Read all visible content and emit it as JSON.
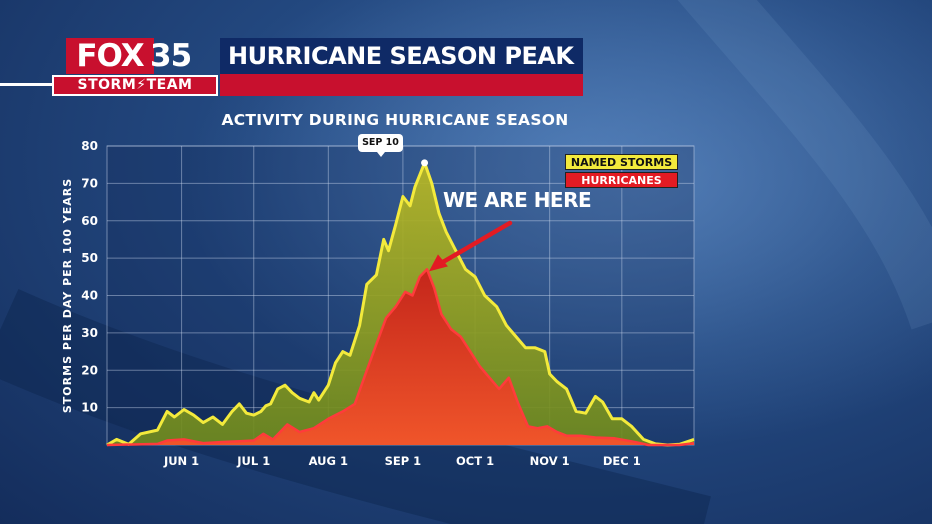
{
  "header": {
    "logo_fox": "FOX",
    "logo_number": "35",
    "logo_team": "STORM⚡TEAM",
    "title": "HURRICANE SEASON PEAK"
  },
  "colors": {
    "named_storms": "#f3ea3c",
    "hurricanes": "#e31b23",
    "brand_red": "#c8102e",
    "title_blue": "#0f2a66"
  },
  "chart_data": {
    "type": "area",
    "title": "ACTIVITY DURING HURRICANE SEASON",
    "ylabel": "STORMS PER DAY PER 100 YEARS",
    "xlabel": "",
    "ylim": [
      0,
      80
    ],
    "yticks": [
      10,
      20,
      30,
      40,
      50,
      60,
      70,
      80
    ],
    "xticks": [
      "JUN 1",
      "JUL 1",
      "AUG 1",
      "SEP 1",
      "OCT 1",
      "NOV 1",
      "DEC 1"
    ],
    "grid": true,
    "legend_position": "top-right",
    "series": [
      {
        "name": "NAMED STORMS",
        "color": "#f3ea3c",
        "points": [
          [
            "May 1",
            0
          ],
          [
            "May 5",
            1.5
          ],
          [
            "May 10",
            0.2
          ],
          [
            "May 15",
            3
          ],
          [
            "May 22",
            4
          ],
          [
            "May 26",
            9
          ],
          [
            "May 29",
            7.5
          ],
          [
            "Jun 2",
            9.5
          ],
          [
            "Jun 6",
            8
          ],
          [
            "Jun 10",
            6
          ],
          [
            "Jun 14",
            7.5
          ],
          [
            "Jun 18",
            5.5
          ],
          [
            "Jun 22",
            9
          ],
          [
            "Jun 25",
            11
          ],
          [
            "Jun 28",
            8.5
          ],
          [
            "Jul 1",
            8
          ],
          [
            "Jul 4",
            9
          ],
          [
            "Jul 6",
            10.5
          ],
          [
            "Jul 8",
            11
          ],
          [
            "Jul 11",
            15
          ],
          [
            "Jul 14",
            16
          ],
          [
            "Jul 17",
            14
          ],
          [
            "Jul 20",
            12.5
          ],
          [
            "Jul 24",
            11.5
          ],
          [
            "Jul 26",
            14
          ],
          [
            "Jul 28",
            12
          ],
          [
            "Aug 1",
            16
          ],
          [
            "Aug 4",
            22
          ],
          [
            "Aug 7",
            25
          ],
          [
            "Aug 10",
            24
          ],
          [
            "Aug 14",
            32
          ],
          [
            "Aug 17",
            43
          ],
          [
            "Aug 21",
            45.5
          ],
          [
            "Aug 24",
            55
          ],
          [
            "Aug 26",
            52
          ],
          [
            "Aug 29",
            59
          ],
          [
            "Sep 1",
            66.5
          ],
          [
            "Sep 4",
            64
          ],
          [
            "Sep 6",
            69
          ],
          [
            "Sep 10",
            75.5
          ],
          [
            "Sep 13",
            70
          ],
          [
            "Sep 16",
            62
          ],
          [
            "Sep 19",
            57
          ],
          [
            "Sep 23",
            52
          ],
          [
            "Sep 27",
            47
          ],
          [
            "Oct 1",
            45
          ],
          [
            "Oct 5",
            40
          ],
          [
            "Oct 10",
            37
          ],
          [
            "Oct 14",
            32
          ],
          [
            "Oct 18",
            29
          ],
          [
            "Oct 22",
            26
          ],
          [
            "Oct 26",
            26
          ],
          [
            "Oct 30",
            25
          ],
          [
            "Nov 1",
            19
          ],
          [
            "Nov 4",
            17
          ],
          [
            "Nov 8",
            15
          ],
          [
            "Nov 12",
            9
          ],
          [
            "Nov 16",
            8.5
          ],
          [
            "Nov 20",
            13
          ],
          [
            "Nov 23",
            11.5
          ],
          [
            "Nov 27",
            7
          ],
          [
            "Dec 1",
            7
          ],
          [
            "Dec 5",
            5
          ],
          [
            "Dec 10",
            1.5
          ],
          [
            "Dec 15",
            0.3
          ],
          [
            "Dec 20",
            0
          ],
          [
            "Dec 25",
            0.2
          ],
          [
            "Dec 31",
            1.5
          ]
        ]
      },
      {
        "name": "HURRICANES",
        "color": "#e31b23",
        "points": [
          [
            "May 1",
            0
          ],
          [
            "May 22",
            0.3
          ],
          [
            "May 26",
            1.2
          ],
          [
            "Jun 2",
            1.5
          ],
          [
            "Jun 10",
            0.5
          ],
          [
            "Jun 18",
            0.8
          ],
          [
            "Jun 25",
            1
          ],
          [
            "Jul 1",
            1.2
          ],
          [
            "Jul 5",
            3
          ],
          [
            "Jul 9",
            1.5
          ],
          [
            "Jul 15",
            5.5
          ],
          [
            "Jul 20",
            3.5
          ],
          [
            "Jul 26",
            4.5
          ],
          [
            "Aug 1",
            7
          ],
          [
            "Aug 7",
            9
          ],
          [
            "Aug 12",
            11
          ],
          [
            "Aug 17",
            20
          ],
          [
            "Aug 21",
            27
          ],
          [
            "Aug 25",
            34
          ],
          [
            "Aug 29",
            37
          ],
          [
            "Sep 2",
            41
          ],
          [
            "Sep 5",
            40
          ],
          [
            "Sep 8",
            45
          ],
          [
            "Sep 11",
            47
          ],
          [
            "Sep 14",
            42
          ],
          [
            "Sep 17",
            35
          ],
          [
            "Sep 21",
            31
          ],
          [
            "Sep 25",
            29
          ],
          [
            "Sep 29",
            25
          ],
          [
            "Oct 3",
            21
          ],
          [
            "Oct 7",
            18
          ],
          [
            "Oct 11",
            15
          ],
          [
            "Oct 15",
            18
          ],
          [
            "Oct 19",
            11
          ],
          [
            "Oct 23",
            5
          ],
          [
            "Oct 27",
            4.5
          ],
          [
            "Oct 31",
            5
          ],
          [
            "Nov 4",
            3.5
          ],
          [
            "Nov 8",
            2.5
          ],
          [
            "Nov 14",
            2.5
          ],
          [
            "Nov 20",
            2
          ],
          [
            "Nov 28",
            1.8
          ],
          [
            "Dec 5",
            1
          ],
          [
            "Dec 12",
            0
          ],
          [
            "Dec 25",
            0
          ],
          [
            "Dec 31",
            0.5
          ]
        ]
      }
    ],
    "annotations": [
      {
        "text": "SEP 10",
        "x": "Sep 10",
        "y": 75.5
      },
      {
        "text": "WE ARE HERE",
        "x": "Sep 11",
        "y": 47
      }
    ]
  }
}
